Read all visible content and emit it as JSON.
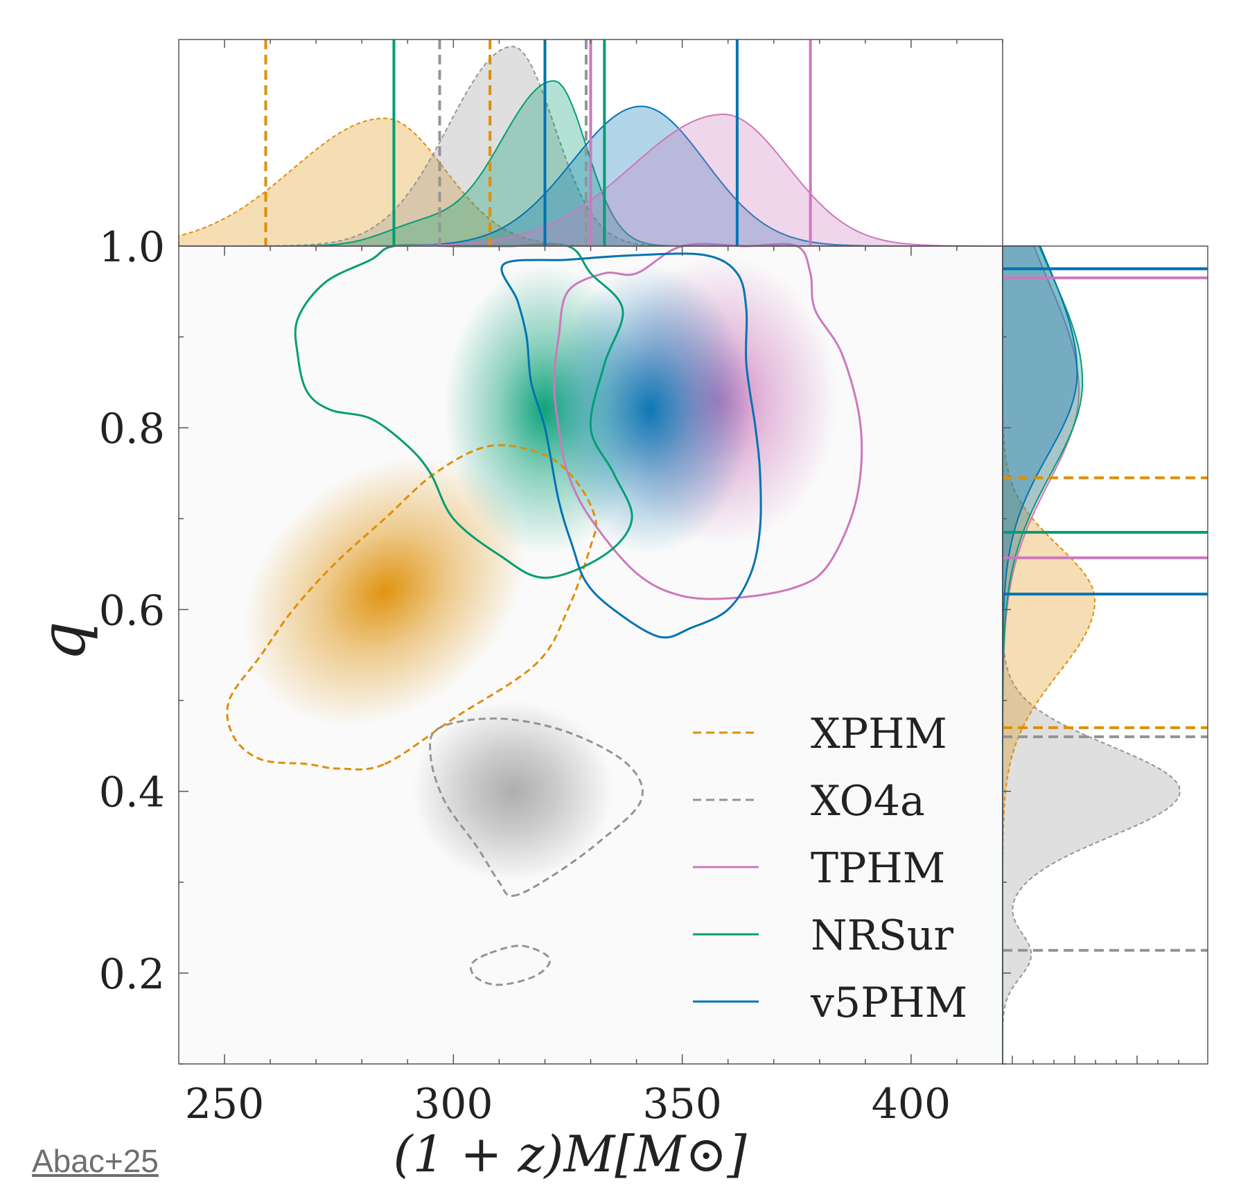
{
  "citation": "Abac+25",
  "chart_data": {
    "type": "scatter",
    "subtype": "corner-plot-2d-density-contours-with-marginals",
    "xlabel": "(1 + z)M[M⊙]",
    "ylabel": "q",
    "xlim": [
      240,
      420
    ],
    "ylim": [
      0.1,
      1.0
    ],
    "x_ticks": [
      250,
      300,
      350,
      400
    ],
    "y_ticks": [
      0.2,
      0.4,
      0.6,
      0.8,
      1.0
    ],
    "x_tick_labels": [
      "250",
      "300",
      "350",
      "400"
    ],
    "y_tick_labels": [
      "0.2",
      "0.4",
      "0.6",
      "0.8",
      "1.0"
    ],
    "grid": false,
    "legend_position": "lower-right",
    "series": [
      {
        "name": "XPHM",
        "color": "#de8f05",
        "linestyle": "dashed",
        "peak": [
          285,
          0.62
        ],
        "x_interval": [
          259,
          308
        ],
        "q_interval": [
          0.47,
          0.745
        ],
        "contour": [
          [
            285,
            0.43
          ],
          [
            300,
            0.48
          ],
          [
            318,
            0.54
          ],
          [
            325,
            0.6
          ],
          [
            330,
            0.67
          ],
          [
            331,
            0.7
          ],
          [
            327,
            0.74
          ],
          [
            320,
            0.77
          ],
          [
            308,
            0.78
          ],
          [
            296,
            0.75
          ],
          [
            285,
            0.7
          ],
          [
            274,
            0.65
          ],
          [
            265,
            0.6
          ],
          [
            258,
            0.55
          ],
          [
            251,
            0.5
          ],
          [
            252,
            0.46
          ],
          [
            258,
            0.435
          ],
          [
            268,
            0.43
          ],
          [
            275,
            0.425
          ]
        ]
      },
      {
        "name": "XO4a",
        "color": "#949494",
        "linestyle": "dashed",
        "peak": [
          313,
          0.4
        ],
        "x_interval": [
          297,
          329
        ],
        "q_interval": [
          0.225,
          0.46
        ],
        "contours": [
          [
            [
              313,
              0.285
            ],
            [
              321,
              0.305
            ],
            [
              332,
              0.345
            ],
            [
              341,
              0.39
            ],
            [
              338,
              0.43
            ],
            [
              325,
              0.465
            ],
            [
              310,
              0.48
            ],
            [
              297,
              0.47
            ],
            [
              295,
              0.44
            ],
            [
              298,
              0.39
            ],
            [
              305,
              0.34
            ],
            [
              310,
              0.3
            ]
          ],
          [
            [
              308,
              0.222
            ],
            [
              315,
              0.23
            ],
            [
              321,
              0.216
            ],
            [
              318,
              0.197
            ],
            [
              310,
              0.187
            ],
            [
              305,
              0.195
            ],
            [
              304,
              0.21
            ]
          ]
        ]
      },
      {
        "name": "TPHM",
        "color": "#cc78bc",
        "linestyle": "solid",
        "peak": [
          358,
          0.83
        ],
        "x_interval": [
          330,
          378
        ],
        "q_interval": [
          0.657,
          0.965
        ],
        "contour": [
          [
            340,
            0.97
          ],
          [
            350,
            1.0
          ],
          [
            364,
            1.0
          ],
          [
            375,
            1.0
          ],
          [
            378,
            0.97
          ],
          [
            379,
            0.93
          ],
          [
            385,
            0.88
          ],
          [
            389,
            0.8
          ],
          [
            388,
            0.72
          ],
          [
            382,
            0.65
          ],
          [
            375,
            0.625
          ],
          [
            362,
            0.613
          ],
          [
            350,
            0.615
          ],
          [
            340,
            0.64
          ],
          [
            330,
            0.7
          ],
          [
            325,
            0.75
          ],
          [
            323,
            0.8
          ],
          [
            322,
            0.85
          ],
          [
            323,
            0.9
          ],
          [
            325,
            0.95
          ],
          [
            333,
            0.97
          ]
        ]
      },
      {
        "name": "NRSur",
        "color": "#029e73",
        "linestyle": "solid",
        "peak": [
          320,
          0.82
        ],
        "x_interval": [
          287,
          333
        ],
        "q_interval": [
          0.685,
          0.975
        ],
        "contour": [
          [
            287,
            1.0
          ],
          [
            300,
            1.0
          ],
          [
            312,
            1.0
          ],
          [
            325,
            1.0
          ],
          [
            330,
            0.97
          ],
          [
            337,
            0.93
          ],
          [
            333,
            0.87
          ],
          [
            330,
            0.8
          ],
          [
            335,
            0.75
          ],
          [
            339,
            0.7
          ],
          [
            333,
            0.66
          ],
          [
            320,
            0.635
          ],
          [
            310,
            0.66
          ],
          [
            300,
            0.7
          ],
          [
            295,
            0.75
          ],
          [
            290,
            0.78
          ],
          [
            282,
            0.81
          ],
          [
            273,
            0.82
          ],
          [
            268,
            0.84
          ],
          [
            266,
            0.88
          ],
          [
            266,
            0.92
          ],
          [
            272,
            0.96
          ],
          [
            282,
            0.985
          ]
        ]
      },
      {
        "name": "v5PHM",
        "color": "#0173b2",
        "linestyle": "solid",
        "peak": [
          343,
          0.82
        ],
        "x_interval": [
          320,
          362
        ],
        "q_interval": [
          0.617,
          0.975
        ],
        "contour": [
          [
            311,
            0.98
          ],
          [
            314,
            0.94
          ],
          [
            316,
            0.9
          ],
          [
            317,
            0.85
          ],
          [
            320,
            0.8
          ],
          [
            323,
            0.72
          ],
          [
            326,
            0.67
          ],
          [
            329,
            0.63
          ],
          [
            335,
            0.6
          ],
          [
            345,
            0.57
          ],
          [
            352,
            0.58
          ],
          [
            360,
            0.6
          ],
          [
            365,
            0.64
          ],
          [
            367,
            0.69
          ],
          [
            367,
            0.75
          ],
          [
            366,
            0.8
          ],
          [
            364,
            0.87
          ],
          [
            364,
            0.93
          ],
          [
            362,
            0.97
          ],
          [
            355,
            0.99
          ],
          [
            340,
            0.99
          ],
          [
            325,
            0.985
          ]
        ]
      }
    ]
  }
}
